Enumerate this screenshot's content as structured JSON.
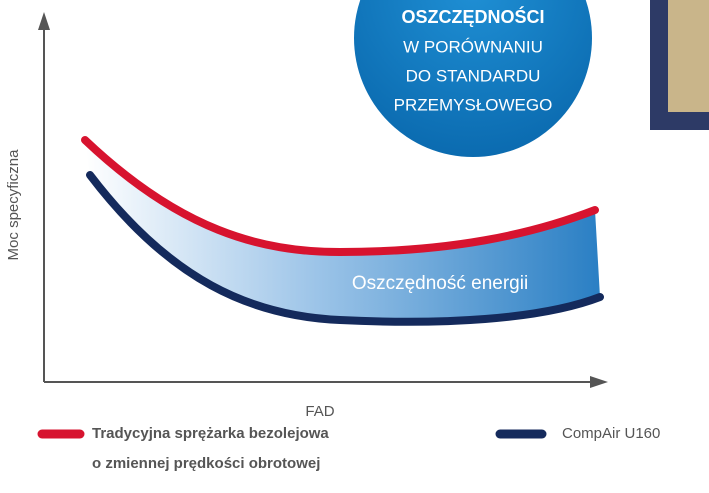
{
  "axes": {
    "y_label": "Moc specyficzna",
    "x_label": "FAD"
  },
  "badge": {
    "lines": [
      "OSZCZĘDNOŚCI",
      "W PORÓWNANIU",
      "DO STANDARDU",
      "PRZEMYSŁOWEGO"
    ]
  },
  "area_label": "Oszczędność energii",
  "legend": [
    {
      "lines": [
        "Tradycyjna sprężarka bezolejowa",
        "o zmiennej prędkości obrotowej"
      ]
    },
    {
      "lines": [
        "CompAir U160"
      ]
    }
  ]
}
